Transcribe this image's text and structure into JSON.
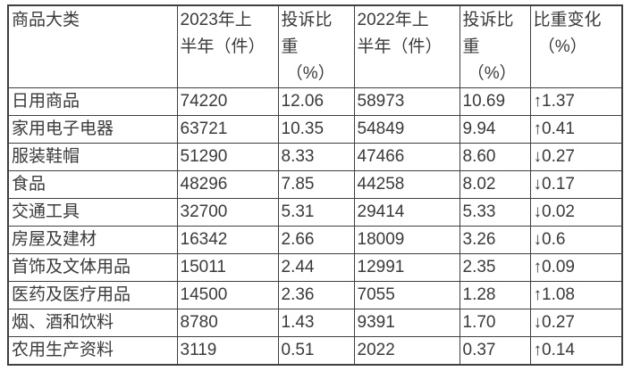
{
  "colors": {
    "background": "#ffffff",
    "text": "#3a3a3a",
    "border": "#3f3f3f"
  },
  "table": {
    "columns": [
      {
        "label": "商品大类"
      },
      {
        "label": "2023年上\n半年（件）"
      },
      {
        "label": "投诉比\n重\n （%）"
      },
      {
        "label": "2022年上\n半年（件）"
      },
      {
        "label": "投诉比\n重\n （%）"
      },
      {
        "label": "比重变化\n （%）"
      }
    ],
    "rows": [
      [
        "日用商品",
        "74220",
        "12.06",
        "58973",
        "10.69",
        "↑1.37"
      ],
      [
        "家用电子电器",
        "63721",
        "10.35",
        "54849",
        "9.94",
        "↑0.41"
      ],
      [
        "服装鞋帽",
        "51290",
        "8.33",
        "47466",
        "8.60",
        "↓0.27"
      ],
      [
        "食品",
        "48296",
        "7.85",
        "44258",
        "8.02",
        "↓0.17"
      ],
      [
        "交通工具",
        "32700",
        "5.31",
        "29414",
        "5.33",
        "↓0.02"
      ],
      [
        "房屋及建材",
        "16342",
        "2.66",
        "18009",
        "3.26",
        "↓0.6"
      ],
      [
        "首饰及文体用品",
        "15011",
        "2.44",
        "12991",
        "2.35",
        "↑0.09"
      ],
      [
        "医药及医疗用品",
        "14500",
        "2.36",
        "7055",
        "1.28",
        "↑1.08"
      ],
      [
        "烟、酒和饮料",
        "8780",
        "1.43",
        "9391",
        "1.70",
        "↓0.27"
      ],
      [
        "农用生产资料",
        "3119",
        "0.51",
        "2022",
        "0.37",
        "↑0.14"
      ]
    ]
  },
  "chart_data": {
    "type": "table",
    "title": "",
    "columns": [
      "商品大类",
      "2023年上半年（件）",
      "投诉比重（%）",
      "2022年上半年（件）",
      "投诉比重（%）",
      "比重变化（%）"
    ],
    "rows": [
      [
        "日用商品",
        74220,
        12.06,
        58973,
        10.69,
        "↑1.37"
      ],
      [
        "家用电子电器",
        63721,
        10.35,
        54849,
        9.94,
        "↑0.41"
      ],
      [
        "服装鞋帽",
        51290,
        8.33,
        47466,
        8.6,
        "↓0.27"
      ],
      [
        "食品",
        48296,
        7.85,
        44258,
        8.02,
        "↓0.17"
      ],
      [
        "交通工具",
        32700,
        5.31,
        29414,
        5.33,
        "↓0.02"
      ],
      [
        "房屋及建材",
        16342,
        2.66,
        18009,
        3.26,
        "↓0.6"
      ],
      [
        "首饰及文体用品",
        15011,
        2.44,
        12991,
        2.35,
        "↑0.09"
      ],
      [
        "医药及医疗用品",
        14500,
        2.36,
        7055,
        1.28,
        "↑1.08"
      ],
      [
        "烟、酒和饮料",
        8780,
        1.43,
        9391,
        1.7,
        "↓0.27"
      ],
      [
        "农用生产资料",
        3119,
        0.51,
        2022,
        0.37,
        "↑0.14"
      ]
    ]
  }
}
